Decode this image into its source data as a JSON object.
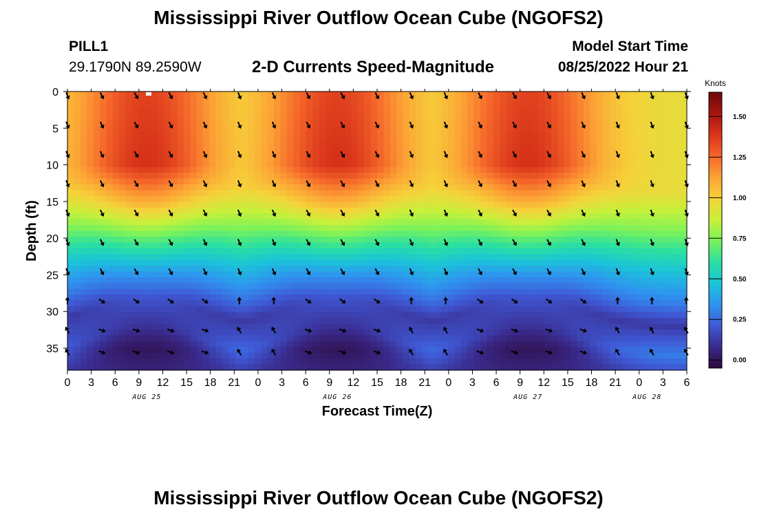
{
  "header": {
    "title": "Mississippi River Outflow Ocean Cube (NGOFS2)",
    "station_name": "PILL1",
    "station_coords": "29.1790N  89.2590W",
    "subtitle": "2-D Currents Speed-Magnitude",
    "model_start_label": "Model Start Time",
    "model_start_value": "08/25/2022 Hour 21"
  },
  "footer": {
    "title": "Mississippi River Outflow Ocean Cube (NGOFS2)"
  },
  "chart_data": {
    "type": "heatmap",
    "title": "2-D Currents Speed-Magnitude",
    "xlabel": "Forecast Time(Z)",
    "ylabel": "Depth (ft)",
    "x_ticks": [
      "0",
      "3",
      "6",
      "9",
      "12",
      "15",
      "18",
      "21",
      "0",
      "3",
      "6",
      "9",
      "12",
      "15",
      "18",
      "21",
      "0",
      "3",
      "6",
      "9",
      "12",
      "15",
      "18",
      "21",
      "0",
      "3",
      "6"
    ],
    "x_hours_range": [
      0,
      78
    ],
    "date_labels": [
      {
        "label": "AUG 25",
        "hour": 10
      },
      {
        "label": "AUG 26",
        "hour": 34
      },
      {
        "label": "AUG 27",
        "hour": 58
      },
      {
        "label": "AUG 28",
        "hour": 73
      }
    ],
    "y_ticks": [
      0,
      5,
      10,
      15,
      20,
      25,
      30,
      35
    ],
    "ylim": [
      0,
      38
    ],
    "y_inverted": true,
    "colorbar": {
      "label": "Knots",
      "ticks": [
        "0.00",
        "0.25",
        "0.50",
        "0.75",
        "1.00",
        "1.25",
        "1.50"
      ],
      "range": [
        -0.05,
        1.65
      ],
      "colors": [
        "#2d0a3c",
        "#3a2a8c",
        "#3f5ad6",
        "#2f93f0",
        "#1bc4d8",
        "#2be0a0",
        "#7af25a",
        "#c8f03a",
        "#f5d23a",
        "#fca235",
        "#f5662a",
        "#d8341a",
        "#a71510",
        "#6e0808"
      ]
    },
    "depth_profile": {
      "description_levels_ft": [
        0,
        10,
        15,
        20,
        25,
        28,
        32,
        35,
        38
      ],
      "peak_speed_knots": [
        1.35,
        1.4,
        1.1,
        0.7,
        0.35,
        0.2,
        0.1,
        0.0,
        0.05
      ],
      "trough_speed_knots": [
        0.95,
        0.95,
        0.75,
        0.5,
        0.3,
        0.12,
        0.3,
        0.15,
        0.1
      ]
    },
    "tidal_peaks_hours": [
      10,
      34,
      58
    ]
  }
}
